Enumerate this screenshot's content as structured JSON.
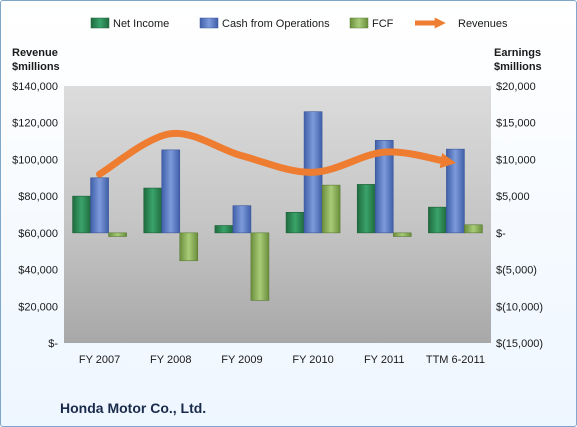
{
  "company": "Honda Motor Co., Ltd.",
  "chart_data": {
    "type": "bar",
    "categories": [
      "FY 2007",
      "FY 2008",
      "FY 2009",
      "FY 2010",
      "FY 2011",
      "TTM 6-2011"
    ],
    "left_axis": {
      "title_lines": [
        "Revenue",
        "$millions"
      ],
      "range": [
        0,
        140000
      ],
      "ticks": [
        0,
        20000,
        40000,
        60000,
        80000,
        100000,
        120000,
        140000
      ],
      "tick_labels": [
        "$-",
        "$20,000",
        "$40,000",
        "$60,000",
        "$80,000",
        "$100,000",
        "$120,000",
        "$140,000"
      ]
    },
    "right_axis": {
      "title_lines": [
        "Earnings",
        "$millions"
      ],
      "range": [
        -15000,
        20000
      ],
      "ticks": [
        -15000,
        -10000,
        -5000,
        0,
        5000,
        10000,
        15000,
        20000
      ],
      "tick_labels": [
        "$(15,000)",
        "$(10,000)",
        "$(5,000)",
        "$-",
        "$5,000",
        "$10,000",
        "$15,000",
        "$20,000"
      ]
    },
    "series": [
      {
        "name": "Net Income",
        "type": "bar",
        "axis": "right",
        "color": "#2e8b57",
        "values": [
          5000,
          6100,
          1000,
          2800,
          6600,
          3500
        ]
      },
      {
        "name": "Cash from Operations",
        "type": "bar",
        "axis": "right",
        "color": "#5b7fc7",
        "values": [
          7500,
          11300,
          3700,
          16500,
          12600,
          11400
        ]
      },
      {
        "name": "FCF",
        "type": "bar",
        "axis": "right",
        "color": "#8db35a",
        "values": [
          -500,
          -3800,
          -9200,
          6500,
          -500,
          1100
        ]
      },
      {
        "name": "Revenues",
        "type": "line",
        "axis": "left",
        "color": "#ee7d31",
        "values": [
          92000,
          114000,
          102000,
          93000,
          104000,
          99000
        ]
      }
    ],
    "legend_position": "top",
    "grid": false,
    "plot_background": "gray-gradient"
  }
}
